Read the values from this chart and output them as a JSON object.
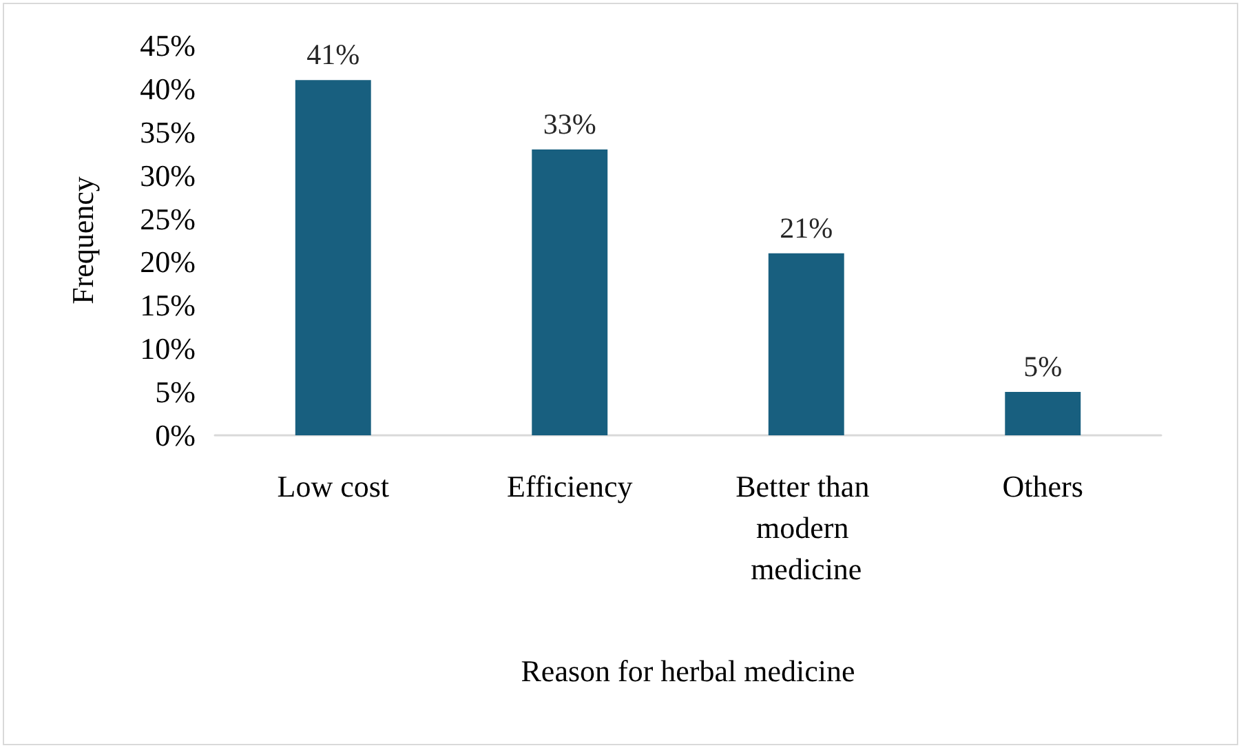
{
  "chart_data": {
    "type": "bar",
    "xlabel": "Reason for herbal medicine",
    "ylabel": "Frequency",
    "categories": [
      "Low cost",
      "Efficiency",
      "Better than modern medicine",
      "Others"
    ],
    "values": [
      41,
      33,
      21,
      5
    ],
    "color": "#185f7f",
    "value_labels": [
      "41%",
      "33%",
      "21%",
      "5%"
    ],
    "ylim": [
      0,
      45
    ],
    "yticks": [
      {
        "value": 0,
        "label": "0%"
      },
      {
        "value": 5,
        "label": "5%"
      },
      {
        "value": 10,
        "label": "10%"
      },
      {
        "value": 15,
        "label": "15%"
      },
      {
        "value": 20,
        "label": "20%"
      },
      {
        "value": 25,
        "label": "25%"
      },
      {
        "value": 30,
        "label": "30%"
      },
      {
        "value": 35,
        "label": "35%"
      },
      {
        "value": 40,
        "label": "40%"
      },
      {
        "value": 45,
        "label": "45%"
      }
    ],
    "grid": false
  }
}
